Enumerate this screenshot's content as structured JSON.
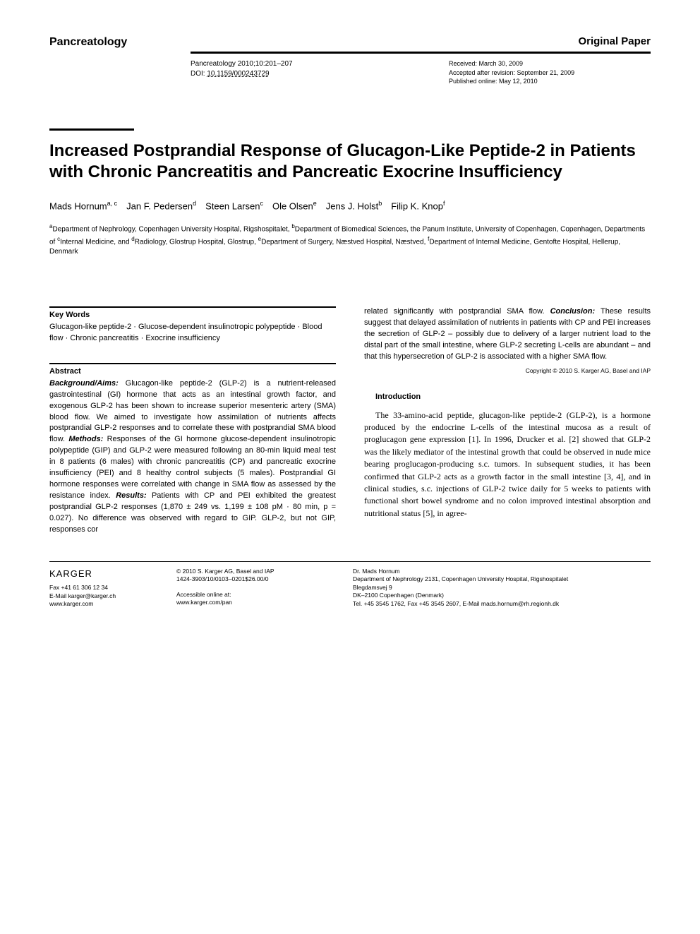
{
  "header": {
    "journal": "Pancreatology",
    "section": "Original Paper",
    "citation": "Pancreatology 2010;10:201–207",
    "doi_label": "DOI: ",
    "doi": "10.1159/000243729",
    "received": "Received: March 30, 2009",
    "accepted": "Accepted after revision: September 21, 2009",
    "published": "Published online: May 12, 2010"
  },
  "title": "Increased Postprandial Response of Glucagon-Like Peptide-2 in Patients with Chronic Pancreatitis and Pancreatic Exocrine Insufficiency",
  "authors_html": "Mads Hornum<sup>a, c</sup> Jan F. Pedersen<sup>d</sup> Steen Larsen<sup>c</sup> Ole Olsen<sup>e</sup> Jens J. Holst<sup>b</sup> Filip K. Knop<sup>f</sup>",
  "affiliations_html": "<sup>a</sup>Department of Nephrology, Copenhagen University Hospital, Rigshospitalet, <sup>b</sup>Department of Biomedical Sciences, the Panum Institute, University of Copenhagen, Copenhagen, Departments of <sup>c</sup>Internal Medicine, and <sup>d</sup>Radiology, Glostrup Hospital, Glostrup, <sup>e</sup>Department of Surgery, Næstved Hospital, Næstved, <sup>f</sup>Department of Internal Medicine, Gentofte Hospital, Hellerup, Denmark",
  "keywords": {
    "heading": "Key Words",
    "text": "Glucagon-like peptide-2 · Glucose-dependent insulinotropic polypeptide · Blood flow · Chronic pancreatitis · Exocrine insufficiency"
  },
  "abstract": {
    "heading": "Abstract",
    "background_label": "Background/Aims:",
    "background": " Glucagon-like peptide-2 (GLP-2) is a nutrient-released gastrointestinal (GI) hormone that acts as an intestinal growth factor, and exogenous GLP-2 has been shown to increase superior mesenteric artery (SMA) blood flow. We aimed to investigate how assimilation of nutrients affects postprandial GLP-2 responses and to correlate these with postprandial SMA blood flow. ",
    "methods_label": "Methods:",
    "methods": " Responses of the GI hormone glucose-dependent insulinotropic polypeptide (GIP) and GLP-2 were measured following an 80-min liquid meal test in 8 patients (6 males) with chronic pancreatitis (CP) and pancreatic exocrine insufficiency (PEI) and 8 healthy control subjects (5 males). Postprandial GI hormone responses were correlated with change in SMA flow as assessed by the resistance index. ",
    "results_label": "Results:",
    "results": " Patients with CP and PEI exhibited the greatest postprandial GLP-2 responses (1,870 ± 249 vs. 1,199 ± 108 pM · 80 min, p = 0.027). No difference was observed with regard to GIP. GLP-2, but not GIP, responses cor",
    "continuation": "related significantly with postprandial SMA flow. ",
    "conclusion_label": "Conclusion:",
    "conclusion": " These results suggest that delayed assimilation of nutrients in patients with CP and PEI increases the secretion of GLP-2 – possibly due to delivery of a larger nutrient load to the distal part of the small intestine, where GLP-2 secreting L-cells are abundant – and that this hypersecretion of GLP-2 is associated with a higher SMA flow.",
    "copyright": "Copyright © 2010 S. Karger AG, Basel and IAP"
  },
  "introduction": {
    "heading": "Introduction",
    "text": "The 33-amino-acid peptide, glucagon-like peptide-2 (GLP-2), is a hormone produced by the endocrine L-cells of the intestinal mucosa as a result of proglucagon gene expression [1]. In 1996, Drucker et al. [2] showed that GLP-2 was the likely mediator of the intestinal growth that could be observed in nude mice bearing proglucagon-producing s.c. tumors. In subsequent studies, it has been confirmed that GLP-2 acts as a growth factor in the small intestine [3, 4], and in clinical studies, s.c. injections of GLP-2 twice daily for 5 weeks to patients with functional short bowel syndrome and no colon improved intestinal absorption and nutritional status [5], in agree-"
  },
  "footer": {
    "publisher": "KARGER",
    "fax": "Fax +41 61 306 12 34",
    "email": "E-Mail karger@karger.ch",
    "web": "www.karger.com",
    "copyright": "© 2010 S. Karger AG, Basel and IAP",
    "issn": "1424-3903/10/0103–0201$26.00/0",
    "accessible": "Accessible online at:",
    "online_url": "www.karger.com/pan",
    "corr_name": "Dr. Mads Hornum",
    "corr_dept": "Department of Nephrology 2131, Copenhagen University Hospital, Rigshospitalet",
    "corr_street": "Blegdamsvej 9",
    "corr_city": "DK–2100 Copenhagen (Denmark)",
    "corr_contact": "Tel. +45 3545 1762, Fax +45 3545 2607, E-Mail mads.hornum@rh.regionh.dk"
  }
}
